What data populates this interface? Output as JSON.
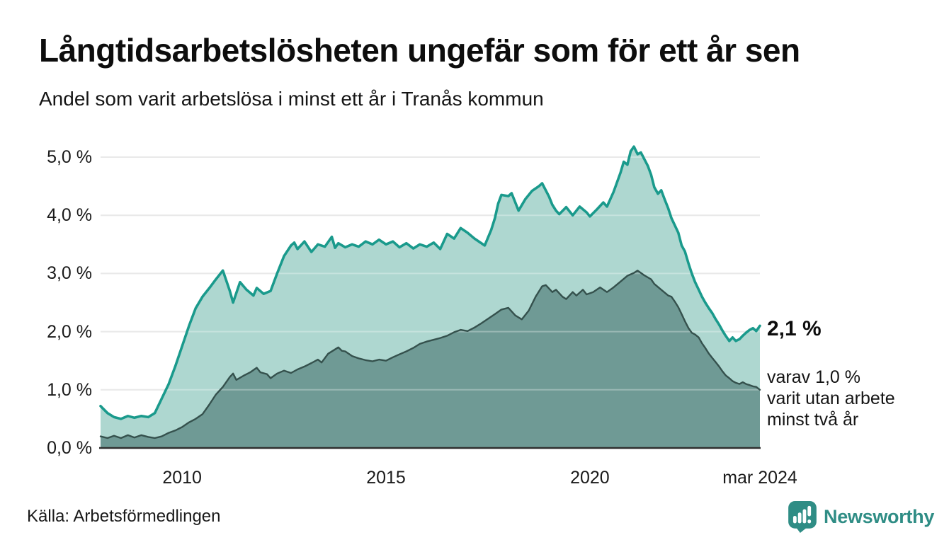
{
  "title": "Långtidsarbetslösheten ungefär som för ett år sen",
  "subtitle": "Andel som varit arbetslösa i minst ett år i Tranås kommun",
  "source": "Källa: Arbetsförmedlingen",
  "branding": {
    "name": "Newsworthy",
    "color": "#2f8d85"
  },
  "annotation": {
    "value_label": "2,1 %",
    "detail_lines": [
      "varav 1,0 %",
      "varit utan arbete",
      "minst två år"
    ]
  },
  "axes": {
    "y_ticks": [
      {
        "label": "0,0 %",
        "value": 0
      },
      {
        "label": "1,0 %",
        "value": 1
      },
      {
        "label": "2,0 %",
        "value": 2
      },
      {
        "label": "3,0 %",
        "value": 3
      },
      {
        "label": "4,0 %",
        "value": 4
      },
      {
        "label": "5,0 %",
        "value": 5
      }
    ],
    "x_ticks": [
      {
        "label": "2010",
        "year": 2010
      },
      {
        "label": "2015",
        "year": 2015
      },
      {
        "label": "2020",
        "year": 2020
      },
      {
        "label": "mar 2024",
        "year": 2024.17
      }
    ]
  },
  "chart_data": {
    "type": "area",
    "title": "Långtidsarbetslösheten ungefär som för ett år sen",
    "subtitle": "Andel som varit arbetslösa i minst ett år i Tranås kommun",
    "unit": "percent",
    "x_unit": "decimal_year_monthly",
    "xlim": [
      2008.0,
      2024.17
    ],
    "ylim": [
      0,
      5.5
    ],
    "grid": true,
    "legend": "none",
    "colors": {
      "line_1yr": "#1a9a8c",
      "fill_1yr": "#aed7d0",
      "line_2yr": "#35514d",
      "fill_2yr": "#6f9a95",
      "gridline": "#e0e0e0",
      "grid_overlay": "rgba(255,255,255,0.30)",
      "baseline": "#2f2f2f"
    },
    "series": [
      {
        "name": "Arbetslösa minst ett år",
        "last_value_label": "2,1 %",
        "points": [
          [
            2008.0,
            0.72
          ],
          [
            2008.17,
            0.6
          ],
          [
            2008.33,
            0.53
          ],
          [
            2008.5,
            0.5
          ],
          [
            2008.67,
            0.55
          ],
          [
            2008.83,
            0.52
          ],
          [
            2009.0,
            0.55
          ],
          [
            2009.17,
            0.53
          ],
          [
            2009.33,
            0.6
          ],
          [
            2009.5,
            0.85
          ],
          [
            2009.67,
            1.1
          ],
          [
            2009.83,
            1.4
          ],
          [
            2010.0,
            1.75
          ],
          [
            2010.17,
            2.1
          ],
          [
            2010.33,
            2.4
          ],
          [
            2010.5,
            2.6
          ],
          [
            2010.67,
            2.75
          ],
          [
            2010.83,
            2.9
          ],
          [
            2011.0,
            3.05
          ],
          [
            2011.17,
            2.7
          ],
          [
            2011.25,
            2.5
          ],
          [
            2011.42,
            2.85
          ],
          [
            2011.58,
            2.72
          ],
          [
            2011.75,
            2.62
          ],
          [
            2011.83,
            2.75
          ],
          [
            2012.0,
            2.65
          ],
          [
            2012.17,
            2.7
          ],
          [
            2012.33,
            3.0
          ],
          [
            2012.5,
            3.3
          ],
          [
            2012.67,
            3.48
          ],
          [
            2012.75,
            3.53
          ],
          [
            2012.83,
            3.42
          ],
          [
            2013.0,
            3.55
          ],
          [
            2013.17,
            3.37
          ],
          [
            2013.33,
            3.5
          ],
          [
            2013.5,
            3.46
          ],
          [
            2013.67,
            3.63
          ],
          [
            2013.75,
            3.44
          ],
          [
            2013.83,
            3.52
          ],
          [
            2014.0,
            3.45
          ],
          [
            2014.17,
            3.5
          ],
          [
            2014.33,
            3.46
          ],
          [
            2014.5,
            3.55
          ],
          [
            2014.67,
            3.5
          ],
          [
            2014.83,
            3.58
          ],
          [
            2015.0,
            3.5
          ],
          [
            2015.17,
            3.55
          ],
          [
            2015.33,
            3.45
          ],
          [
            2015.5,
            3.52
          ],
          [
            2015.67,
            3.43
          ],
          [
            2015.83,
            3.5
          ],
          [
            2016.0,
            3.46
          ],
          [
            2016.17,
            3.53
          ],
          [
            2016.33,
            3.42
          ],
          [
            2016.5,
            3.68
          ],
          [
            2016.67,
            3.6
          ],
          [
            2016.83,
            3.78
          ],
          [
            2017.0,
            3.7
          ],
          [
            2017.17,
            3.6
          ],
          [
            2017.42,
            3.48
          ],
          [
            2017.58,
            3.75
          ],
          [
            2017.67,
            3.95
          ],
          [
            2017.75,
            4.2
          ],
          [
            2017.83,
            4.35
          ],
          [
            2018.0,
            4.33
          ],
          [
            2018.08,
            4.38
          ],
          [
            2018.25,
            4.08
          ],
          [
            2018.42,
            4.28
          ],
          [
            2018.58,
            4.42
          ],
          [
            2018.75,
            4.5
          ],
          [
            2018.83,
            4.55
          ],
          [
            2019.0,
            4.32
          ],
          [
            2019.08,
            4.18
          ],
          [
            2019.17,
            4.08
          ],
          [
            2019.25,
            4.02
          ],
          [
            2019.42,
            4.14
          ],
          [
            2019.58,
            4.0
          ],
          [
            2019.75,
            4.15
          ],
          [
            2019.92,
            4.05
          ],
          [
            2020.0,
            3.98
          ],
          [
            2020.17,
            4.1
          ],
          [
            2020.33,
            4.22
          ],
          [
            2020.42,
            4.15
          ],
          [
            2020.58,
            4.4
          ],
          [
            2020.75,
            4.73
          ],
          [
            2020.83,
            4.92
          ],
          [
            2020.92,
            4.87
          ],
          [
            2021.0,
            5.1
          ],
          [
            2021.08,
            5.18
          ],
          [
            2021.17,
            5.05
          ],
          [
            2021.25,
            5.08
          ],
          [
            2021.42,
            4.85
          ],
          [
            2021.5,
            4.7
          ],
          [
            2021.58,
            4.48
          ],
          [
            2021.67,
            4.37
          ],
          [
            2021.75,
            4.43
          ],
          [
            2021.83,
            4.28
          ],
          [
            2021.92,
            4.12
          ],
          [
            2022.0,
            3.95
          ],
          [
            2022.17,
            3.7
          ],
          [
            2022.25,
            3.48
          ],
          [
            2022.33,
            3.38
          ],
          [
            2022.42,
            3.17
          ],
          [
            2022.5,
            3.0
          ],
          [
            2022.58,
            2.85
          ],
          [
            2022.67,
            2.72
          ],
          [
            2022.75,
            2.6
          ],
          [
            2022.83,
            2.5
          ],
          [
            2022.92,
            2.4
          ],
          [
            2023.0,
            2.32
          ],
          [
            2023.08,
            2.22
          ],
          [
            2023.17,
            2.12
          ],
          [
            2023.25,
            2.02
          ],
          [
            2023.33,
            1.93
          ],
          [
            2023.42,
            1.84
          ],
          [
            2023.5,
            1.9
          ],
          [
            2023.58,
            1.84
          ],
          [
            2023.67,
            1.87
          ],
          [
            2023.75,
            1.93
          ],
          [
            2023.83,
            1.98
          ],
          [
            2023.92,
            2.03
          ],
          [
            2024.0,
            2.06
          ],
          [
            2024.08,
            2.01
          ],
          [
            2024.17,
            2.1
          ]
        ]
      },
      {
        "name": "varav arbetslösa minst två år",
        "last_value_label": "1,0 %",
        "points": [
          [
            2008.0,
            0.2
          ],
          [
            2008.17,
            0.17
          ],
          [
            2008.33,
            0.21
          ],
          [
            2008.5,
            0.17
          ],
          [
            2008.67,
            0.22
          ],
          [
            2008.83,
            0.18
          ],
          [
            2009.0,
            0.22
          ],
          [
            2009.17,
            0.19
          ],
          [
            2009.33,
            0.17
          ],
          [
            2009.5,
            0.2
          ],
          [
            2009.67,
            0.26
          ],
          [
            2009.83,
            0.3
          ],
          [
            2010.0,
            0.36
          ],
          [
            2010.17,
            0.44
          ],
          [
            2010.33,
            0.5
          ],
          [
            2010.5,
            0.58
          ],
          [
            2010.67,
            0.75
          ],
          [
            2010.83,
            0.92
          ],
          [
            2011.0,
            1.05
          ],
          [
            2011.17,
            1.22
          ],
          [
            2011.25,
            1.28
          ],
          [
            2011.33,
            1.17
          ],
          [
            2011.5,
            1.24
          ],
          [
            2011.67,
            1.3
          ],
          [
            2011.83,
            1.38
          ],
          [
            2011.92,
            1.3
          ],
          [
            2012.08,
            1.27
          ],
          [
            2012.17,
            1.2
          ],
          [
            2012.33,
            1.28
          ],
          [
            2012.5,
            1.33
          ],
          [
            2012.67,
            1.29
          ],
          [
            2012.83,
            1.35
          ],
          [
            2013.0,
            1.4
          ],
          [
            2013.17,
            1.46
          ],
          [
            2013.33,
            1.52
          ],
          [
            2013.42,
            1.47
          ],
          [
            2013.58,
            1.62
          ],
          [
            2013.83,
            1.73
          ],
          [
            2013.92,
            1.67
          ],
          [
            2014.0,
            1.66
          ],
          [
            2014.17,
            1.58
          ],
          [
            2014.33,
            1.54
          ],
          [
            2014.5,
            1.51
          ],
          [
            2014.67,
            1.49
          ],
          [
            2014.83,
            1.52
          ],
          [
            2015.0,
            1.5
          ],
          [
            2015.17,
            1.56
          ],
          [
            2015.33,
            1.61
          ],
          [
            2015.5,
            1.66
          ],
          [
            2015.67,
            1.72
          ],
          [
            2015.83,
            1.79
          ],
          [
            2016.0,
            1.83
          ],
          [
            2016.17,
            1.86
          ],
          [
            2016.33,
            1.89
          ],
          [
            2016.5,
            1.93
          ],
          [
            2016.67,
            1.99
          ],
          [
            2016.83,
            2.03
          ],
          [
            2017.0,
            2.01
          ],
          [
            2017.17,
            2.07
          ],
          [
            2017.33,
            2.14
          ],
          [
            2017.5,
            2.22
          ],
          [
            2017.67,
            2.3
          ],
          [
            2017.83,
            2.38
          ],
          [
            2018.0,
            2.41
          ],
          [
            2018.17,
            2.28
          ],
          [
            2018.33,
            2.21
          ],
          [
            2018.5,
            2.36
          ],
          [
            2018.67,
            2.6
          ],
          [
            2018.83,
            2.78
          ],
          [
            2018.92,
            2.8
          ],
          [
            2019.08,
            2.68
          ],
          [
            2019.17,
            2.72
          ],
          [
            2019.33,
            2.6
          ],
          [
            2019.42,
            2.56
          ],
          [
            2019.58,
            2.68
          ],
          [
            2019.67,
            2.62
          ],
          [
            2019.83,
            2.72
          ],
          [
            2019.92,
            2.64
          ],
          [
            2020.08,
            2.68
          ],
          [
            2020.25,
            2.76
          ],
          [
            2020.42,
            2.68
          ],
          [
            2020.58,
            2.76
          ],
          [
            2020.75,
            2.86
          ],
          [
            2020.92,
            2.96
          ],
          [
            2021.08,
            3.01
          ],
          [
            2021.17,
            3.05
          ],
          [
            2021.33,
            2.97
          ],
          [
            2021.5,
            2.9
          ],
          [
            2021.58,
            2.82
          ],
          [
            2021.75,
            2.72
          ],
          [
            2021.92,
            2.62
          ],
          [
            2022.0,
            2.6
          ],
          [
            2022.08,
            2.52
          ],
          [
            2022.17,
            2.42
          ],
          [
            2022.25,
            2.3
          ],
          [
            2022.33,
            2.18
          ],
          [
            2022.42,
            2.06
          ],
          [
            2022.5,
            1.98
          ],
          [
            2022.58,
            1.95
          ],
          [
            2022.67,
            1.9
          ],
          [
            2022.75,
            1.8
          ],
          [
            2022.83,
            1.72
          ],
          [
            2022.92,
            1.62
          ],
          [
            2023.0,
            1.55
          ],
          [
            2023.08,
            1.48
          ],
          [
            2023.17,
            1.4
          ],
          [
            2023.25,
            1.32
          ],
          [
            2023.33,
            1.25
          ],
          [
            2023.42,
            1.2
          ],
          [
            2023.5,
            1.15
          ],
          [
            2023.58,
            1.12
          ],
          [
            2023.67,
            1.1
          ],
          [
            2023.75,
            1.13
          ],
          [
            2023.83,
            1.1
          ],
          [
            2023.92,
            1.08
          ],
          [
            2024.0,
            1.06
          ],
          [
            2024.08,
            1.05
          ],
          [
            2024.17,
            1.0
          ]
        ]
      }
    ]
  }
}
